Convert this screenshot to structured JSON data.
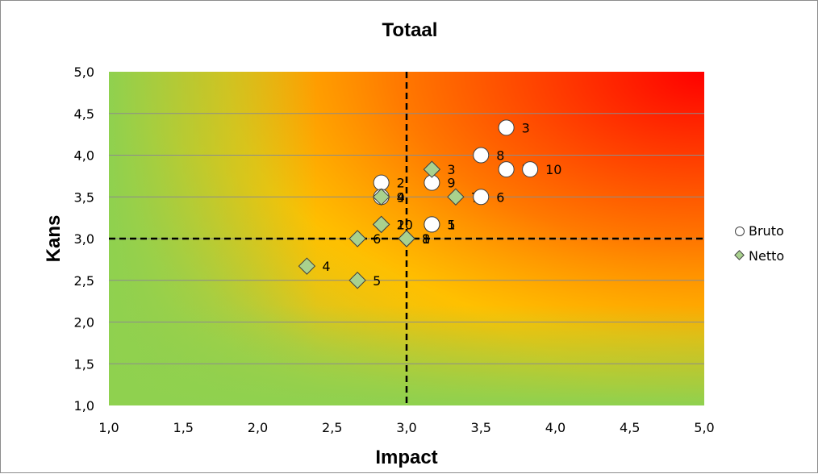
{
  "chart_data": {
    "type": "scatter",
    "title": "Totaal",
    "xlabel": "Impact",
    "ylabel": "Kans",
    "xlim": [
      1.0,
      5.0
    ],
    "ylim": [
      1.0,
      5.0
    ],
    "xticks": [
      "1,0",
      "1,5",
      "2,0",
      "2,5",
      "3,0",
      "3,5",
      "4,0",
      "4,5",
      "5,0"
    ],
    "yticks": [
      "1,0",
      "1,5",
      "2,0",
      "2,5",
      "3,0",
      "3,5",
      "4,0",
      "4,5",
      "5,0"
    ],
    "grid": true,
    "threshold_lines": {
      "x": 3.0,
      "y": 3.0,
      "style": "dashed"
    },
    "background": "risk gradient green-yellow-red",
    "legend_position": "right",
    "colors": {
      "bruto_fill": "#ffffff",
      "netto_fill": "#a9d18e",
      "marker_stroke": "#404040"
    },
    "series": [
      {
        "name": "Bruto",
        "marker": "circle",
        "points": [
          {
            "x": 2.83,
            "y": 3.67,
            "label": "2"
          },
          {
            "x": 3.17,
            "y": 3.67,
            "label": "9"
          },
          {
            "x": 3.67,
            "y": 4.33,
            "label": "3"
          },
          {
            "x": 3.5,
            "y": 4.0,
            "label": "8"
          },
          {
            "x": 3.67,
            "y": 3.83,
            "label": "7"
          },
          {
            "x": 3.83,
            "y": 3.83,
            "label": "10"
          },
          {
            "x": 3.5,
            "y": 3.5,
            "label": "6"
          },
          {
            "x": 2.83,
            "y": 3.5,
            "label": "4"
          },
          {
            "x": 3.17,
            "y": 3.17,
            "label": "5"
          },
          {
            "x": 3.17,
            "y": 3.17,
            "label": "1"
          }
        ]
      },
      {
        "name": "Netto",
        "marker": "diamond",
        "points": [
          {
            "x": 3.17,
            "y": 3.83,
            "label": "3"
          },
          {
            "x": 3.33,
            "y": 3.5,
            "label": "7"
          },
          {
            "x": 2.83,
            "y": 3.5,
            "label": "9"
          },
          {
            "x": 2.83,
            "y": 3.17,
            "label": "2"
          },
          {
            "x": 2.83,
            "y": 3.17,
            "label": "10"
          },
          {
            "x": 2.67,
            "y": 3.0,
            "label": "6"
          },
          {
            "x": 3.0,
            "y": 3.0,
            "label": "1"
          },
          {
            "x": 3.0,
            "y": 3.0,
            "label": "8"
          },
          {
            "x": 2.33,
            "y": 2.67,
            "label": "4"
          },
          {
            "x": 2.67,
            "y": 2.5,
            "label": "5"
          }
        ]
      }
    ]
  }
}
